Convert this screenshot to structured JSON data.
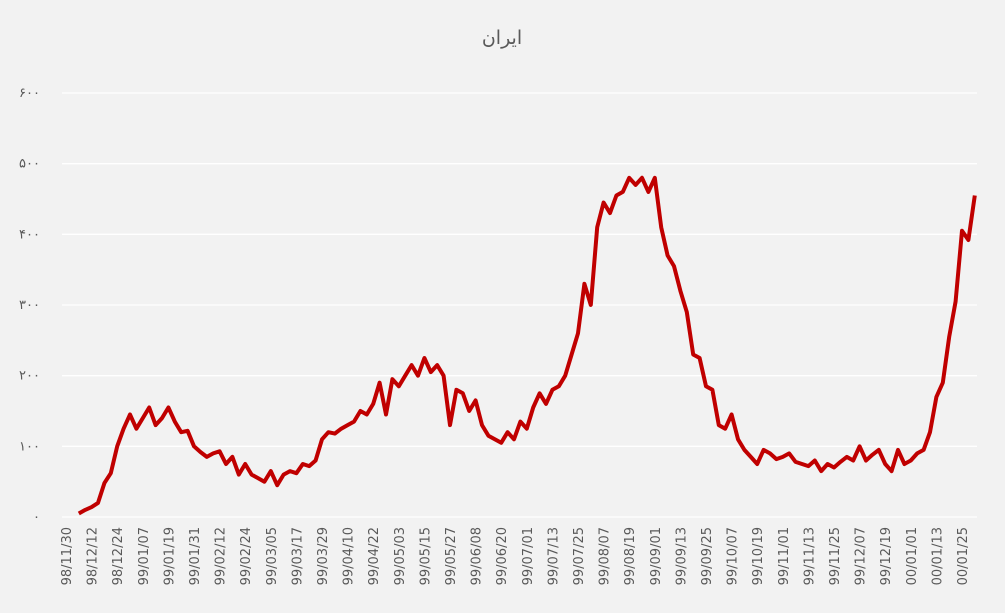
{
  "chart_data": {
    "type": "line",
    "title": "ایران",
    "categories": [
      "98/11/30",
      null,
      null,
      null,
      "98/12/12",
      null,
      null,
      null,
      "98/12/24",
      null,
      null,
      null,
      "99/01/07",
      null,
      null,
      null,
      "99/01/19",
      null,
      null,
      null,
      "99/01/31",
      null,
      null,
      null,
      "99/02/12",
      null,
      null,
      null,
      "99/02/24",
      null,
      null,
      null,
      "99/03/05",
      null,
      null,
      null,
      "99/03/17",
      null,
      null,
      null,
      "99/03/29",
      null,
      null,
      null,
      "99/04/10",
      null,
      null,
      null,
      "99/04/22",
      null,
      null,
      null,
      "99/05/03",
      null,
      null,
      null,
      "99/05/15",
      null,
      null,
      null,
      "99/05/27",
      null,
      null,
      null,
      "99/06/08",
      null,
      null,
      null,
      "99/06/20",
      null,
      null,
      null,
      "99/07/01",
      null,
      null,
      null,
      "99/07/13",
      null,
      null,
      null,
      "99/07/25",
      null,
      null,
      null,
      "99/08/07",
      null,
      null,
      null,
      "99/08/19",
      null,
      null,
      null,
      "99/09/01",
      null,
      null,
      null,
      "99/09/13",
      null,
      null,
      null,
      "99/09/25",
      null,
      null,
      null,
      "99/10/07",
      null,
      null,
      null,
      "99/10/19",
      null,
      null,
      null,
      "99/11/01",
      null,
      null,
      null,
      "99/11/13",
      null,
      null,
      null,
      "99/11/25",
      null,
      null,
      null,
      "99/12/07",
      null,
      null,
      null,
      "99/12/19",
      null,
      null,
      null,
      "00/01/01",
      null,
      null,
      null,
      "00/01/13",
      null,
      null,
      null,
      "00/01/25",
      null,
      null
    ],
    "series": [
      {
        "color": "#c00000",
        "values": [
          null,
          null,
          5,
          10,
          14,
          20,
          48,
          62,
          100,
          125,
          145,
          125,
          140,
          155,
          130,
          140,
          155,
          135,
          120,
          122,
          100,
          92,
          85,
          90,
          93,
          75,
          85,
          60,
          75,
          60,
          55,
          50,
          65,
          45,
          60,
          65,
          62,
          75,
          72,
          80,
          110,
          120,
          118,
          125,
          130,
          135,
          150,
          145,
          160,
          190,
          145,
          195,
          185,
          200,
          215,
          200,
          225,
          205,
          215,
          200,
          130,
          180,
          175,
          150,
          165,
          130,
          115,
          110,
          105,
          120,
          110,
          135,
          125,
          155,
          175,
          160,
          180,
          185,
          200,
          230,
          260,
          330,
          300,
          410,
          445,
          430,
          455,
          460,
          480,
          470,
          480,
          460,
          480,
          410,
          370,
          355,
          320,
          290,
          230,
          225,
          185,
          180,
          130,
          125,
          145,
          110,
          95,
          85,
          75,
          95,
          90,
          82,
          85,
          90,
          78,
          75,
          72,
          80,
          65,
          75,
          70,
          78,
          85,
          80,
          100,
          80,
          88,
          95,
          75,
          65,
          95,
          75,
          80,
          90,
          95,
          120,
          170,
          190,
          255,
          305,
          405,
          392,
          455
        ]
      }
    ],
    "ylim": [
      0,
      600
    ],
    "yticks": [
      {
        "value": 0,
        "label": "۰"
      },
      {
        "value": 100,
        "label": "۱۰۰"
      },
      {
        "value": 200,
        "label": "۲۰۰"
      },
      {
        "value": 300,
        "label": "۳۰۰"
      },
      {
        "value": 400,
        "label": "۴۰۰"
      },
      {
        "value": 500,
        "label": "۵۰۰"
      },
      {
        "value": 600,
        "label": "۶۰۰"
      }
    ],
    "grid": true
  }
}
